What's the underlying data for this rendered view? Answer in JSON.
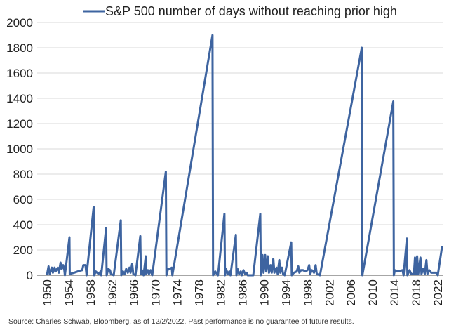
{
  "chart_data": {
    "type": "line",
    "title": "",
    "xlabel": "",
    "ylabel": "",
    "legend": "top-center",
    "grid": "horizontal",
    "ylim": [
      0,
      2000
    ],
    "xlim": [
      1948.2,
      2022.9
    ],
    "y_ticks": [
      "0",
      "200",
      "400",
      "600",
      "800",
      "1000",
      "1200",
      "1400",
      "1600",
      "1800",
      "2000"
    ],
    "x_ticks": [
      "1950",
      "1954",
      "1958",
      "1962",
      "1966",
      "1970",
      "1974",
      "1978",
      "1982",
      "1986",
      "1990",
      "1994",
      "1998",
      "2002",
      "2006",
      "2010",
      "2014",
      "2018",
      "2022"
    ],
    "series": [
      {
        "name": "S&P 500 number of days without reaching prior high",
        "color": "#3E64A0",
        "points": [
          [
            1950.0,
            0
          ],
          [
            1950.3,
            70
          ],
          [
            1950.5,
            10
          ],
          [
            1950.9,
            60
          ],
          [
            1951.1,
            20
          ],
          [
            1951.4,
            60
          ],
          [
            1951.6,
            30
          ],
          [
            1952.0,
            60
          ],
          [
            1952.2,
            20
          ],
          [
            1952.5,
            100
          ],
          [
            1952.7,
            50
          ],
          [
            1953.0,
            80
          ],
          [
            1953.2,
            40
          ],
          [
            1953.3,
            0
          ],
          [
            1954.15,
            300
          ],
          [
            1954.2,
            10
          ],
          [
            1955.0,
            20
          ],
          [
            1956.0,
            35
          ],
          [
            1956.5,
            40
          ],
          [
            1956.7,
            80
          ],
          [
            1957.1,
            80
          ],
          [
            1957.3,
            0
          ],
          [
            1958.6,
            540
          ],
          [
            1958.7,
            0
          ],
          [
            1959.0,
            30
          ],
          [
            1959.5,
            10
          ],
          [
            1959.9,
            30
          ],
          [
            1960.0,
            0
          ],
          [
            1960.9,
            375
          ],
          [
            1961.0,
            0
          ],
          [
            1961.3,
            50
          ],
          [
            1961.6,
            40
          ],
          [
            1961.8,
            10
          ],
          [
            1962.3,
            0
          ],
          [
            1963.6,
            435
          ],
          [
            1963.7,
            0
          ],
          [
            1964.0,
            30
          ],
          [
            1964.3,
            10
          ],
          [
            1964.6,
            50
          ],
          [
            1964.9,
            20
          ],
          [
            1965.2,
            60
          ],
          [
            1965.4,
            20
          ],
          [
            1965.7,
            90
          ],
          [
            1965.9,
            10
          ],
          [
            1966.3,
            0
          ],
          [
            1967.2,
            310
          ],
          [
            1967.3,
            10
          ],
          [
            1967.5,
            40
          ],
          [
            1967.7,
            10
          ],
          [
            1967.8,
            0
          ],
          [
            1968.2,
            150
          ],
          [
            1968.3,
            10
          ],
          [
            1968.6,
            40
          ],
          [
            1968.8,
            10
          ],
          [
            1969.1,
            40
          ],
          [
            1969.4,
            0
          ],
          [
            1971.9,
            820
          ],
          [
            1972.0,
            0
          ],
          [
            1972.3,
            50
          ],
          [
            1972.6,
            50
          ],
          [
            1973.0,
            60
          ],
          [
            1973.1,
            0
          ],
          [
            1980.5,
            1900
          ],
          [
            1980.6,
            0
          ],
          [
            1981.0,
            30
          ],
          [
            1981.3,
            10
          ],
          [
            1981.5,
            0
          ],
          [
            1982.7,
            485
          ],
          [
            1982.8,
            0
          ],
          [
            1983.0,
            50
          ],
          [
            1983.3,
            10
          ],
          [
            1983.6,
            30
          ],
          [
            1983.8,
            0
          ],
          [
            1984.8,
            320
          ],
          [
            1984.9,
            0
          ],
          [
            1985.1,
            50
          ],
          [
            1985.4,
            10
          ],
          [
            1985.7,
            30
          ],
          [
            1985.9,
            0
          ],
          [
            1986.2,
            40
          ],
          [
            1986.5,
            10
          ],
          [
            1986.8,
            20
          ],
          [
            1987.0,
            0
          ],
          [
            1988.0,
            0
          ],
          [
            1989.3,
            485
          ],
          [
            1989.4,
            0
          ],
          [
            1989.7,
            160
          ],
          [
            1989.9,
            20
          ],
          [
            1990.2,
            160
          ],
          [
            1990.4,
            30
          ],
          [
            1990.7,
            150
          ],
          [
            1990.9,
            20
          ],
          [
            1991.2,
            80
          ],
          [
            1991.4,
            20
          ],
          [
            1991.7,
            130
          ],
          [
            1991.9,
            20
          ],
          [
            1992.3,
            60
          ],
          [
            1992.5,
            10
          ],
          [
            1992.8,
            120
          ],
          [
            1993.0,
            20
          ],
          [
            1993.3,
            60
          ],
          [
            1993.5,
            10
          ],
          [
            1993.8,
            0
          ],
          [
            1995.0,
            260
          ],
          [
            1995.1,
            0
          ],
          [
            1995.5,
            20
          ],
          [
            1996.0,
            30
          ],
          [
            1996.3,
            70
          ],
          [
            1996.5,
            20
          ],
          [
            1996.8,
            40
          ],
          [
            1997.2,
            40
          ],
          [
            1997.6,
            30
          ],
          [
            1998.0,
            40
          ],
          [
            1998.3,
            80
          ],
          [
            1998.5,
            10
          ],
          [
            1998.8,
            40
          ],
          [
            1999.2,
            20
          ],
          [
            1999.5,
            80
          ],
          [
            1999.7,
            10
          ],
          [
            2000.3,
            0
          ],
          [
            2008.0,
            1800
          ],
          [
            2008.1,
            0
          ],
          [
            2013.8,
            1375
          ],
          [
            2013.9,
            0
          ],
          [
            2014.1,
            40
          ],
          [
            2014.5,
            30
          ],
          [
            2015.0,
            35
          ],
          [
            2015.5,
            40
          ],
          [
            2015.7,
            0
          ],
          [
            2016.3,
            290
          ],
          [
            2016.4,
            0
          ],
          [
            2016.8,
            40
          ],
          [
            2017.1,
            10
          ],
          [
            2017.6,
            10
          ],
          [
            2017.8,
            140
          ],
          [
            2018.0,
            10
          ],
          [
            2018.2,
            150
          ],
          [
            2018.4,
            10
          ],
          [
            2018.8,
            140
          ],
          [
            2019.0,
            10
          ],
          [
            2019.3,
            50
          ],
          [
            2019.6,
            10
          ],
          [
            2019.9,
            120
          ],
          [
            2020.1,
            10
          ],
          [
            2020.4,
            40
          ],
          [
            2020.8,
            20
          ],
          [
            2021.3,
            20
          ],
          [
            2021.8,
            20
          ],
          [
            2022.0,
            0
          ],
          [
            2022.8,
            230
          ]
        ]
      }
    ]
  },
  "source_note": "Source: Charles Schwab, Bloomberg, as of 12/2/2022. Past performance is no guarantee of future results."
}
